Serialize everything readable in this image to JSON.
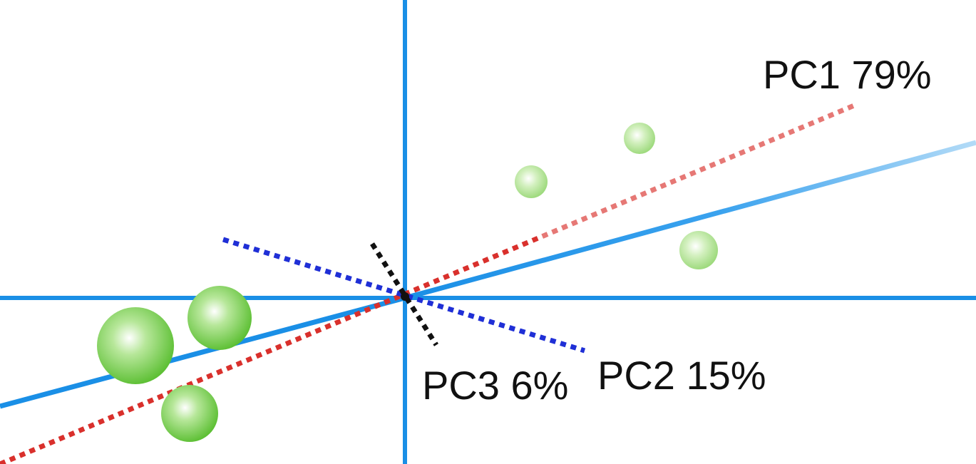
{
  "labels": {
    "pc1": "PC1 79%",
    "pc2": "PC2 15%",
    "pc3": "PC3 6%"
  },
  "colors": {
    "background": "#ffffff",
    "axis": "#1a8fe6",
    "fit_line": "#1a8fe6",
    "fit_line_fade": "#a8d4f5",
    "pc1": "#d9302c",
    "pc2": "#1f2fd6",
    "pc3": "#111111",
    "points": "#6cc644",
    "points_highlight": "#ffffff",
    "text": "#111111"
  }
}
